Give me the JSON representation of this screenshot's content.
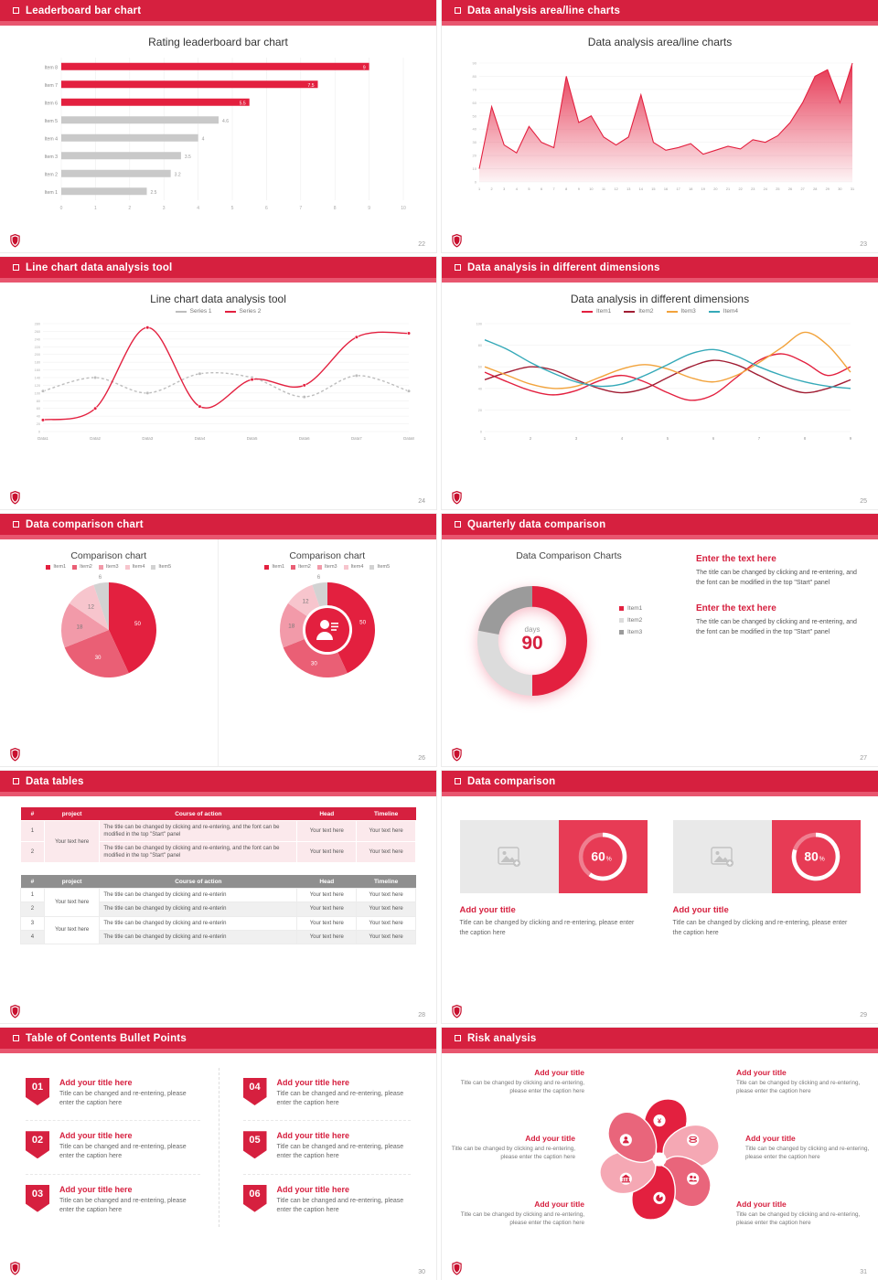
{
  "accent": "#d6203f",
  "slides": [
    {
      "header": "Leaderboard bar chart",
      "page": "22",
      "title": "Rating leaderboard bar chart",
      "chart": {
        "type": "hbar",
        "categories": [
          "Item 8",
          "Item 7",
          "Item 6",
          "Item 5",
          "Item 4",
          "Item 3",
          "Item 2",
          "Item 1"
        ],
        "values": [
          9,
          7.5,
          5.5,
          4.6,
          4,
          3.5,
          3.2,
          2.5
        ],
        "colors": [
          "#e3203f",
          "#e3203f",
          "#e3203f",
          "#c9c9c9",
          "#c9c9c9",
          "#c9c9c9",
          "#c9c9c9",
          "#c9c9c9"
        ],
        "xmax": 10,
        "xticks": [
          0,
          1,
          2,
          3,
          4,
          5,
          6,
          7,
          8,
          9,
          10
        ]
      }
    },
    {
      "header": "Data analysis area/line charts",
      "page": "23",
      "title": "Data analysis area/line charts",
      "chart": {
        "type": "area",
        "color": "#e3203f",
        "ymax": 90,
        "ystep": 10,
        "x": [
          "1",
          "2",
          "3",
          "4",
          "5",
          "6",
          "7",
          "8",
          "9",
          "10",
          "11",
          "12",
          "13",
          "14",
          "15",
          "16",
          "17",
          "18",
          "19",
          "20",
          "21",
          "22",
          "23",
          "24",
          "25",
          "26",
          "27",
          "28",
          "29",
          "30",
          "31"
        ],
        "values": [
          10,
          57,
          28,
          22,
          42,
          30,
          26,
          80,
          45,
          50,
          34,
          28,
          34,
          66,
          30,
          24,
          26,
          29,
          21,
          24,
          27,
          25,
          32,
          30,
          35,
          45,
          60,
          80,
          85,
          60,
          90
        ]
      }
    },
    {
      "header": "Line chart data analysis tool",
      "page": "24",
      "title": "Line chart data analysis tool",
      "chart": {
        "type": "line",
        "ymax": 280,
        "ystep": 20,
        "xlabels": [
          "Data1",
          "Data2",
          "Data3",
          "Data4",
          "Data5",
          "Data6",
          "Data7",
          "Data8"
        ],
        "series": [
          {
            "name": "Series 1",
            "color": "#bdbdbd",
            "dash": "3,2.5",
            "values": [
              105,
              140,
              100,
              150,
              140,
              90,
              145,
              105
            ]
          },
          {
            "name": "Series 2",
            "color": "#e3203f",
            "dash": "",
            "values": [
              30,
              60,
              270,
              65,
              135,
              120,
              245,
              255
            ]
          }
        ]
      }
    },
    {
      "header": "Data analysis in different dimensions",
      "page": "25",
      "title": "Data analysis in different dimensions",
      "chart": {
        "type": "line",
        "ymax": 100,
        "ystep": 20,
        "markers": false,
        "xlabels": [
          "1",
          "2",
          "3",
          "4",
          "5",
          "6",
          "7",
          "8",
          "9"
        ],
        "series": [
          {
            "name": "Item1",
            "color": "#e3203f",
            "values": [
              55,
              46,
              38,
              34,
              38,
              47,
              52,
              46,
              36,
              29,
              34,
              50,
              66,
              72,
              64,
              52,
              60
            ]
          },
          {
            "name": "Item2",
            "color": "#a11d33",
            "values": [
              48,
              55,
              60,
              57,
              48,
              40,
              36,
              40,
              50,
              60,
              66,
              62,
              52,
              42,
              36,
              40,
              48
            ]
          },
          {
            "name": "Item3",
            "color": "#f2a33c",
            "values": [
              60,
              52,
              44,
              40,
              42,
              50,
              58,
              62,
              58,
              50,
              46,
              52,
              64,
              78,
              92,
              80,
              55
            ]
          },
          {
            "name": "Item4",
            "color": "#35a9b8",
            "values": [
              85,
              76,
              64,
              54,
              46,
              42,
              44,
              52,
              62,
              72,
              76,
              70,
              60,
              52,
              46,
              42,
              40
            ]
          }
        ]
      }
    },
    {
      "header": "Data comparison chart",
      "page": "26",
      "left": {
        "title": "Comparison chart",
        "legend": [
          "Item1",
          "Item2",
          "Item3",
          "Item4",
          "Item5"
        ],
        "chart": {
          "type": "pie",
          "values": [
            50,
            30,
            18,
            12,
            6
          ],
          "labels": [
            "50",
            "30",
            "18",
            "12",
            "6"
          ],
          "colors": [
            "#e3203f",
            "#ea5f75",
            "#f29aa9",
            "#f7c5cd",
            "#d2d2d2"
          ]
        }
      },
      "right": {
        "title": "Comparison chart",
        "legend": [
          "Item1",
          "Item2",
          "Item3",
          "Item4",
          "Item5"
        ],
        "chart": {
          "type": "donut",
          "inner": 0.52,
          "center": "person",
          "centerColor": "#e3203f",
          "values": [
            50,
            30,
            18,
            12,
            6
          ],
          "labels": [
            "50",
            "30",
            "18",
            "12",
            "6"
          ],
          "colors": [
            "#e3203f",
            "#ea5f75",
            "#f29aa9",
            "#f7c5cd",
            "#d2d2d2"
          ]
        }
      }
    },
    {
      "header": "Quarterly data comparison",
      "page": "27",
      "title": "Data Comparison Charts",
      "chart": {
        "type": "donut",
        "inner": 0.62,
        "w": 150,
        "h": 150,
        "r": 60,
        "values": [
          50,
          28,
          22
        ],
        "colors": [
          "#e3203f",
          "#dcdcdc",
          "#9b9b9b"
        ]
      },
      "center": {
        "label": "days",
        "value": "90"
      },
      "legend": [
        {
          "label": "Item1"
        },
        {
          "label": "Item2"
        },
        {
          "label": "Item3"
        }
      ],
      "blocks": [
        {
          "heading": "Enter the text here",
          "body": "The title can be changed by clicking and re-entering, and the font can be modified in the top \"Start\" panel"
        },
        {
          "heading": "Enter the text here",
          "body": "The title can be changed by clicking and re-entering, and the font can be modified in the top \"Start\" panel"
        }
      ]
    },
    {
      "header": "Data tables",
      "page": "28",
      "table1": {
        "headers": [
          "#",
          "project",
          "Course of action",
          "Head",
          "Timeline"
        ],
        "project": "Your text here",
        "rows": [
          {
            "num": "1",
            "course": "The title can be changed by clicking and re-entering, and the font can be modified in the top \"Start\" panel",
            "head": "Your text here",
            "timeline": "Your text here"
          },
          {
            "num": "2",
            "course": "The title can be changed by clicking and re-entering, and the font can be modified in the top \"Start\" panel",
            "head": "Your text here",
            "timeline": "Your text here"
          }
        ]
      },
      "table2": {
        "headers": [
          "#",
          "project",
          "Course of action",
          "Head",
          "Timeline"
        ],
        "projectA": "Your text here",
        "projectB": "Your text here",
        "rows": [
          {
            "num": "1",
            "course": "The title can be changed by clicking and re-enterin",
            "head": "Your text here",
            "timeline": "Your text here"
          },
          {
            "num": "2",
            "course": "The title can be changed by clicking and re-enterin",
            "head": "Your text here",
            "timeline": "Your text here"
          },
          {
            "num": "3",
            "course": "The title can be changed by clicking and re-enterin",
            "head": "Your text here",
            "timeline": "Your text here"
          },
          {
            "num": "4",
            "course": "The title can be changed by clicking and re-enterin",
            "head": "Your text here",
            "timeline": "Your text here"
          }
        ]
      }
    },
    {
      "header": "Data comparison",
      "page": "29",
      "cards": [
        {
          "type": "progress",
          "percent": 60,
          "title": "Add your title",
          "caption": "Title can be changed by clicking and re-entering, please enter the caption here"
        },
        {
          "type": "progress",
          "percent": 80,
          "title": "Add your title",
          "caption": "Title can be changed by clicking and re-entering, please enter the caption here"
        }
      ]
    },
    {
      "header": "Table of Contents Bullet Points",
      "page": "30",
      "items": [
        {
          "num": "01",
          "title": "Add your title here",
          "caption": "Title can be changed and re-entering, please enter the caption here"
        },
        {
          "num": "02",
          "title": "Add your title here",
          "caption": "Title can be changed and re-entering, please enter the caption here"
        },
        {
          "num": "03",
          "title": "Add your title here",
          "caption": "Title can be changed and re-entering, please enter the caption here"
        },
        {
          "num": "04",
          "title": "Add your title here",
          "caption": "Title can be changed and re-entering, please enter the caption here"
        },
        {
          "num": "05",
          "title": "Add your title here",
          "caption": "Title can be changed and re-entering, please enter the caption here"
        },
        {
          "num": "06",
          "title": "Add your title here",
          "caption": "Title can be changed and re-entering, please enter the caption here"
        }
      ]
    },
    {
      "header": "Risk analysis",
      "page": "31",
      "wheel": {
        "type": "pinwheel",
        "colors": [
          "#e3203f",
          "#f5a8b4",
          "#e9657b",
          "#e3203f",
          "#f5a8b4",
          "#e9657b"
        ],
        "icons": [
          "moneybag",
          "coins",
          "people",
          "pie",
          "bank",
          "person"
        ]
      },
      "items": [
        {
          "title": "Add your title",
          "caption": "Title can be changed by clicking and re-entering, please enter the caption here"
        },
        {
          "title": "Add your title",
          "caption": "Title can be changed by clicking and re-entering, please enter the caption here"
        },
        {
          "title": "Add your title",
          "caption": "Title can be changed by clicking and re-entering, please enter the caption here"
        },
        {
          "title": "Add your title",
          "caption": "Title can be changed by clicking and re-entering, please enter the caption here"
        },
        {
          "title": "Add your title",
          "caption": "Title can be changed by clicking and re-entering, please enter the caption here"
        },
        {
          "title": "Add your title",
          "caption": "Title can be changed by clicking and re-entering, please enter the caption here"
        }
      ]
    }
  ]
}
